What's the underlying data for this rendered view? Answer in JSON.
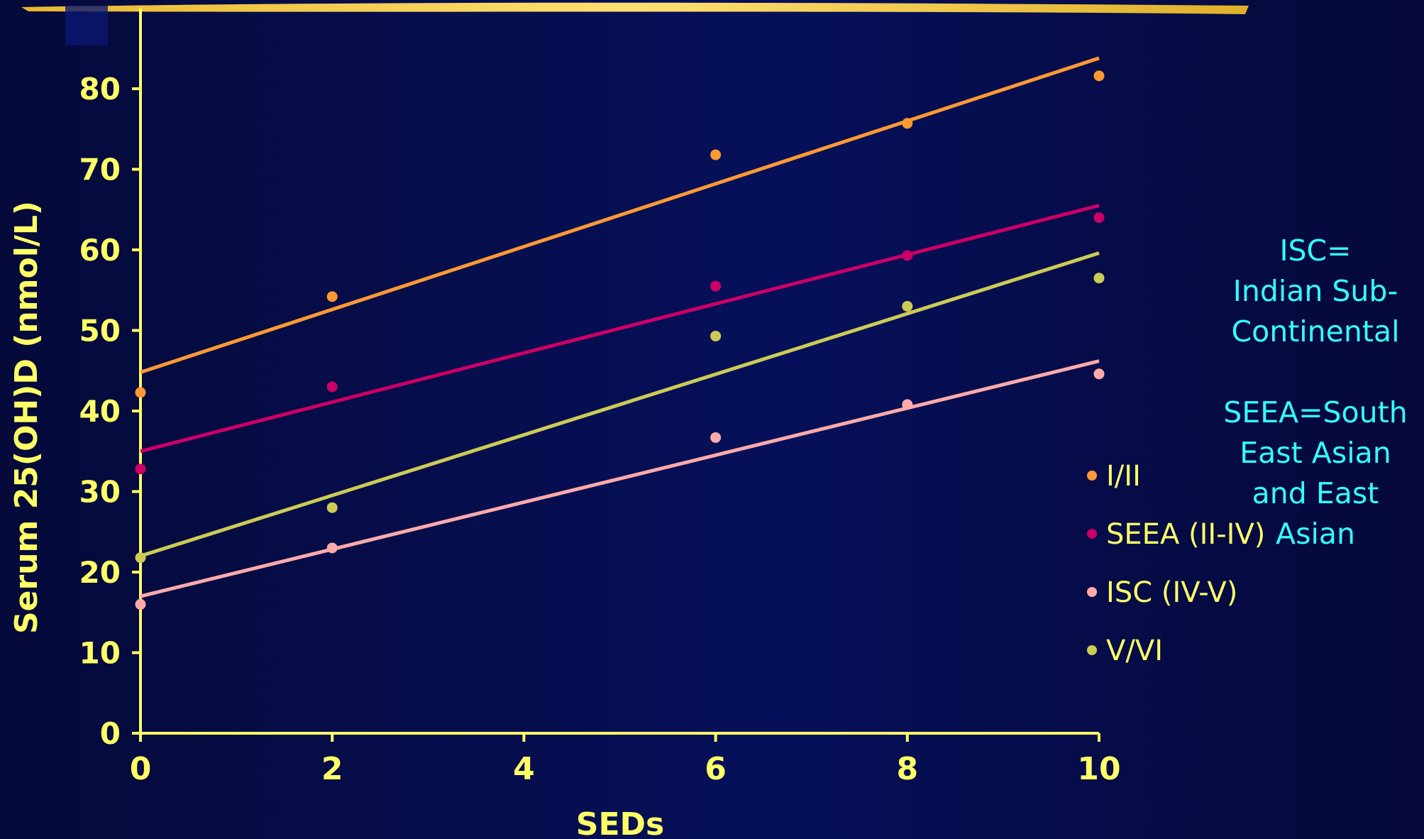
{
  "chart_data": {
    "type": "scatter",
    "title": "",
    "xlabel": "SEDs",
    "ylabel": "Serum 25(OH)D (nmol/L)",
    "xlim": [
      0,
      10
    ],
    "ylim": [
      0,
      80
    ],
    "x_ticks": [
      "0",
      "2",
      "4",
      "6",
      "8",
      "10"
    ],
    "y_ticks": [
      "0",
      "10",
      "20",
      "30",
      "40",
      "50",
      "60",
      "70",
      "80"
    ],
    "grid": false,
    "legend_position": "right",
    "trendlines": true,
    "series": [
      {
        "name": "I/II",
        "color": "#ff9933",
        "points": [
          [
            0,
            42.3
          ],
          [
            2,
            54.2
          ],
          [
            6,
            71.8
          ],
          [
            8,
            75.7
          ],
          [
            10,
            81.6
          ]
        ],
        "trend": [
          [
            0,
            44.8
          ],
          [
            10,
            83.8
          ]
        ]
      },
      {
        "name": "SEEA (II-IV)",
        "color": "#cc0066",
        "points": [
          [
            0,
            32.8
          ],
          [
            2,
            43.0
          ],
          [
            6,
            55.5
          ],
          [
            8,
            59.3
          ],
          [
            10,
            64.0
          ]
        ],
        "trend": [
          [
            0,
            35.0
          ],
          [
            10,
            65.5
          ]
        ]
      },
      {
        "name": "ISC (IV-V)",
        "color": "#ffaaaa",
        "points": [
          [
            0,
            16.0
          ],
          [
            2,
            23.0
          ],
          [
            6,
            36.7
          ],
          [
            8,
            40.8
          ],
          [
            10,
            44.6
          ]
        ],
        "trend": [
          [
            0,
            17.0
          ],
          [
            10,
            46.2
          ]
        ]
      },
      {
        "name": "V/VI",
        "color": "#cccc55",
        "points": [
          [
            0,
            21.8
          ],
          [
            2,
            28.0
          ],
          [
            6,
            49.3
          ],
          [
            8,
            53.0
          ],
          [
            10,
            56.5
          ]
        ],
        "trend": [
          [
            0,
            22.0
          ],
          [
            10,
            59.6
          ]
        ]
      }
    ]
  },
  "note": {
    "lines": [
      "ISC=",
      "Indian Sub-",
      "Continental",
      "",
      "SEEA=South",
      "East Asian",
      "and East",
      "Asian"
    ]
  }
}
